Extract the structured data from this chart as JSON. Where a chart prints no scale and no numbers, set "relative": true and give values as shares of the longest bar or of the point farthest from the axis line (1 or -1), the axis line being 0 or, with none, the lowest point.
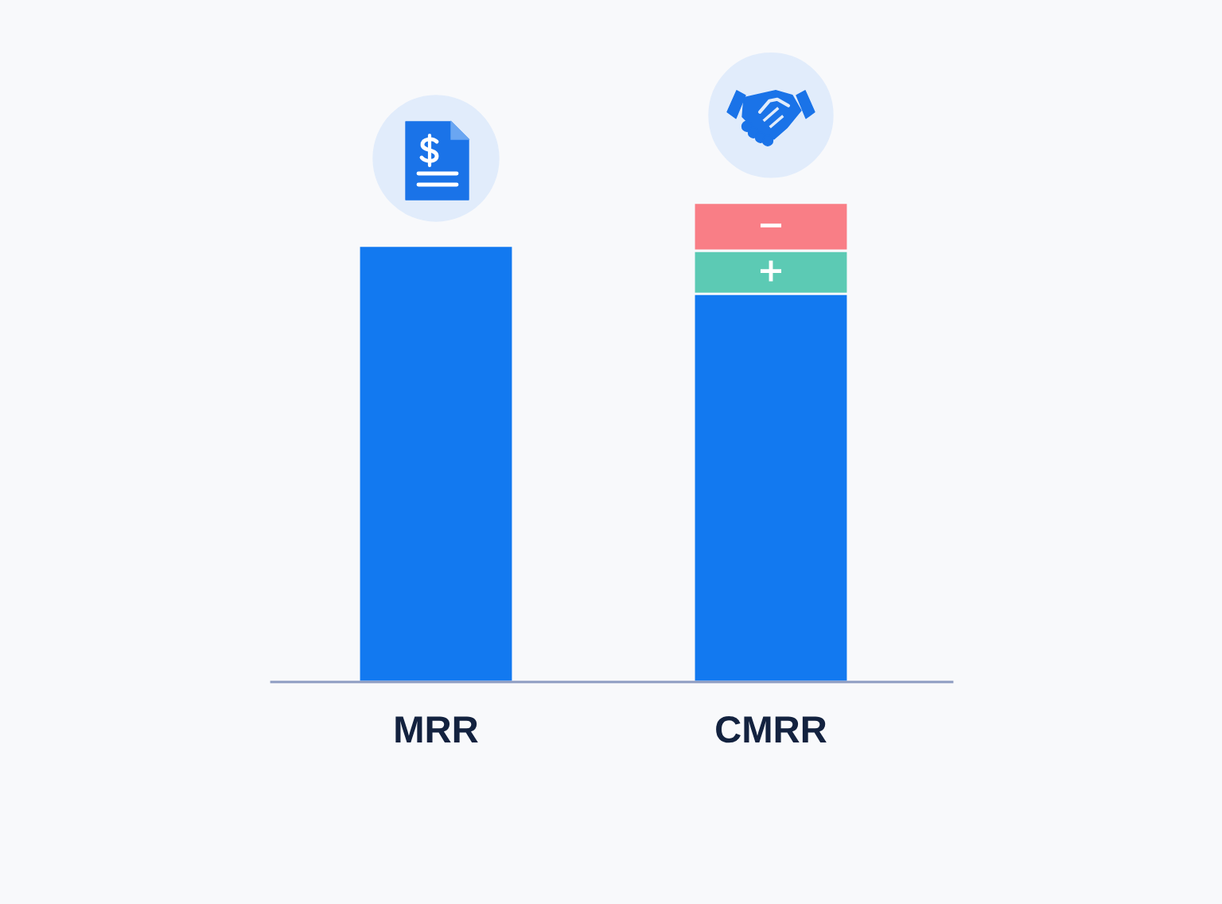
{
  "chart_data": {
    "type": "bar",
    "relative": true,
    "stacked": true,
    "categories": [
      "MRR",
      "CMRR"
    ],
    "series": [
      {
        "color": "#1279f0",
        "values": [
          0.91,
          0.81
        ]
      },
      {
        "name": "+",
        "color": "#5ccab4",
        "values": [
          null,
          0.09
        ]
      },
      {
        "name": "−",
        "color": "#f97e86",
        "values": [
          null,
          0.1
        ]
      }
    ]
  }
}
